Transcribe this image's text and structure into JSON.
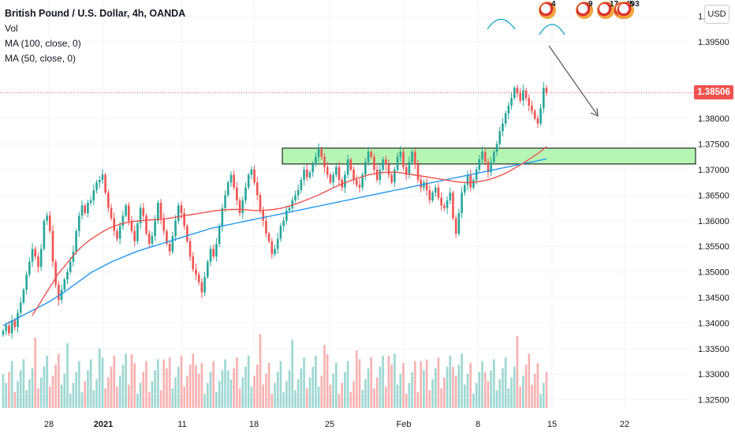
{
  "legend": {
    "title": "British Pound / U.S. Dollar, 4h, OANDA",
    "vol": "Vol",
    "ma100": "MA (100, close, 0)",
    "ma50": "MA (50, close, 0)"
  },
  "currency_button": "USD",
  "last_price": "1.38506",
  "events": [
    {
      "count": "4"
    },
    {
      "count": "9"
    },
    {
      "count": "17"
    },
    {
      "count": "103"
    },
    {
      "count": "5"
    }
  ],
  "colors": {
    "up": "#26a69a",
    "down": "#ef5350",
    "ma100": "#2196f3",
    "ma50": "#ef5350",
    "zone_fill": "#a5f2a2",
    "zone_border": "#000000",
    "annotation": "#0fa3c6"
  },
  "chart_data": {
    "type": "candlestick",
    "symbol": "British Pound / U.S. Dollar",
    "interval": "4h",
    "y_ticks": [
      "1.40000",
      "1.39500",
      "1.38000",
      "1.37500",
      "1.37000",
      "1.36500",
      "1.36000",
      "1.35500",
      "1.35000",
      "1.34500",
      "1.34000",
      "1.33500",
      "1.33000",
      "1.32500"
    ],
    "ylim": [
      1.3234,
      1.4007
    ],
    "x_ticks": [
      "28",
      "2021",
      "11",
      "18",
      "25",
      "Feb",
      "8",
      "15",
      "22"
    ],
    "resistance_zone": [
      1.3711,
      1.3742
    ],
    "closes": [
      1.3385,
      1.3395,
      1.338,
      1.3405,
      1.3392,
      1.342,
      1.344,
      1.3465,
      1.3495,
      1.352,
      1.3545,
      1.353,
      1.351,
      1.3545,
      1.36,
      1.361,
      1.358,
      1.352,
      1.3475,
      1.3445,
      1.3465,
      1.3485,
      1.35,
      1.352,
      1.354,
      1.358,
      1.361,
      1.363,
      1.3615,
      1.3635,
      1.364,
      1.366,
      1.3675,
      1.368,
      1.369,
      1.3655,
      1.3625,
      1.3605,
      1.358,
      1.3565,
      1.359,
      1.361,
      1.363,
      1.36,
      1.358,
      1.356,
      1.3595,
      1.3625,
      1.361,
      1.3575,
      1.3555,
      1.357,
      1.36,
      1.3635,
      1.3605,
      1.358,
      1.3555,
      1.354,
      1.357,
      1.36,
      1.363,
      1.3615,
      1.359,
      1.356,
      1.353,
      1.3505,
      1.3495,
      1.348,
      1.346,
      1.349,
      1.352,
      1.3545,
      1.353,
      1.3555,
      1.359,
      1.3625,
      1.365,
      1.3675,
      1.369,
      1.3665,
      1.364,
      1.3615,
      1.364,
      1.3665,
      1.369,
      1.37,
      1.3675,
      1.365,
      1.362,
      1.36,
      1.3575,
      1.356,
      1.3535,
      1.3545,
      1.3565,
      1.359,
      1.36,
      1.362,
      1.3625,
      1.364,
      1.365,
      1.366,
      1.368,
      1.37,
      1.3685,
      1.3695,
      1.371,
      1.3725,
      1.374,
      1.3725,
      1.3705,
      1.369,
      1.3675,
      1.369,
      1.3705,
      1.368,
      1.3665,
      1.369,
      1.372,
      1.37,
      1.368,
      1.367,
      1.3665,
      1.369,
      1.3715,
      1.3735,
      1.3725,
      1.37,
      1.368,
      1.37,
      1.372,
      1.371,
      1.369,
      1.3675,
      1.37,
      1.3725,
      1.3735,
      1.3705,
      1.369,
      1.3715,
      1.3735,
      1.371,
      1.368,
      1.3665,
      1.3675,
      1.366,
      1.364,
      1.3655,
      1.3665,
      1.3645,
      1.363,
      1.3625,
      1.364,
      1.3655,
      1.3605,
      1.3575,
      1.3615,
      1.3655,
      1.367,
      1.369,
      1.3665,
      1.368,
      1.37,
      1.372,
      1.3735,
      1.3715,
      1.3695,
      1.3715,
      1.3735,
      1.375,
      1.3775,
      1.379,
      1.381,
      1.3825,
      1.384,
      1.386,
      1.385,
      1.3835,
      1.3855,
      1.384,
      1.3825,
      1.3815,
      1.38,
      1.379,
      1.382,
      1.386,
      1.38506
    ],
    "ma100": [
      1.3395,
      1.34,
      1.3405,
      1.341,
      1.3415,
      1.342,
      1.3425,
      1.343,
      1.3435,
      1.344,
      1.3446,
      1.3452,
      1.3458,
      1.3465,
      1.3472,
      1.3479,
      1.3486,
      1.3493,
      1.35,
      1.3505,
      1.351,
      1.3515,
      1.352,
      1.3524,
      1.3528,
      1.3532,
      1.3536,
      1.354,
      1.3543,
      1.3546,
      1.3549,
      1.3552,
      1.3555,
      1.3558,
      1.3561,
      1.3564,
      1.3567,
      1.357,
      1.3573,
      1.3576,
      1.3579,
      1.3582,
      1.3585,
      1.3587,
      1.3589,
      1.3591,
      1.3593,
      1.3595,
      1.3597,
      1.3599,
      1.3601,
      1.3603,
      1.3605,
      1.3607,
      1.3609,
      1.3611,
      1.3613,
      1.3615,
      1.3617,
      1.3619,
      1.3621,
      1.3623,
      1.3625,
      1.3627,
      1.3629,
      1.3631,
      1.3633,
      1.3635,
      1.3637,
      1.3639,
      1.3641,
      1.3643,
      1.3645,
      1.3647,
      1.3649,
      1.3651,
      1.3653,
      1.3655,
      1.3657,
      1.3659,
      1.3661,
      1.3663,
      1.3665,
      1.3667,
      1.3669,
      1.3671,
      1.3673,
      1.3675,
      1.3677,
      1.3679,
      1.3681,
      1.3683,
      1.3685,
      1.3687,
      1.3689,
      1.3691,
      1.3693,
      1.3695,
      1.3697,
      1.3699,
      1.3701,
      1.3703,
      1.3705,
      1.3707,
      1.3709,
      1.3711,
      1.3713,
      1.3715,
      1.3717,
      1.3719,
      1.3721
    ],
    "ma50": [
      1.3415,
      1.3435,
      1.3455,
      1.3475,
      1.3495,
      1.351,
      1.3525,
      1.354,
      1.3552,
      1.3562,
      1.357,
      1.3578,
      1.3585,
      1.359,
      1.3594,
      1.3597,
      1.3599,
      1.36,
      1.3601,
      1.3602,
      1.3603,
      1.3604,
      1.3606,
      1.3608,
      1.361,
      1.3612,
      1.3614,
      1.3616,
      1.3618,
      1.362,
      1.3621,
      1.3622,
      1.3622,
      1.3622,
      1.3621,
      1.362,
      1.362,
      1.3621,
      1.3622,
      1.3624,
      1.3627,
      1.3631,
      1.3635,
      1.364,
      1.3645,
      1.365,
      1.3656,
      1.3662,
      1.3668,
      1.3673,
      1.3678,
      1.3682,
      1.3686,
      1.369,
      1.3692,
      1.3694,
      1.3695,
      1.3695,
      1.3694,
      1.3692,
      1.369,
      1.3688,
      1.3686,
      1.3684,
      1.3682,
      1.368,
      1.3678,
      1.3676,
      1.3675,
      1.3675,
      1.3676,
      1.3678,
      1.3681,
      1.3685,
      1.369,
      1.3696,
      1.3703,
      1.371,
      1.3718,
      1.3726,
      1.3735,
      1.3745
    ]
  }
}
